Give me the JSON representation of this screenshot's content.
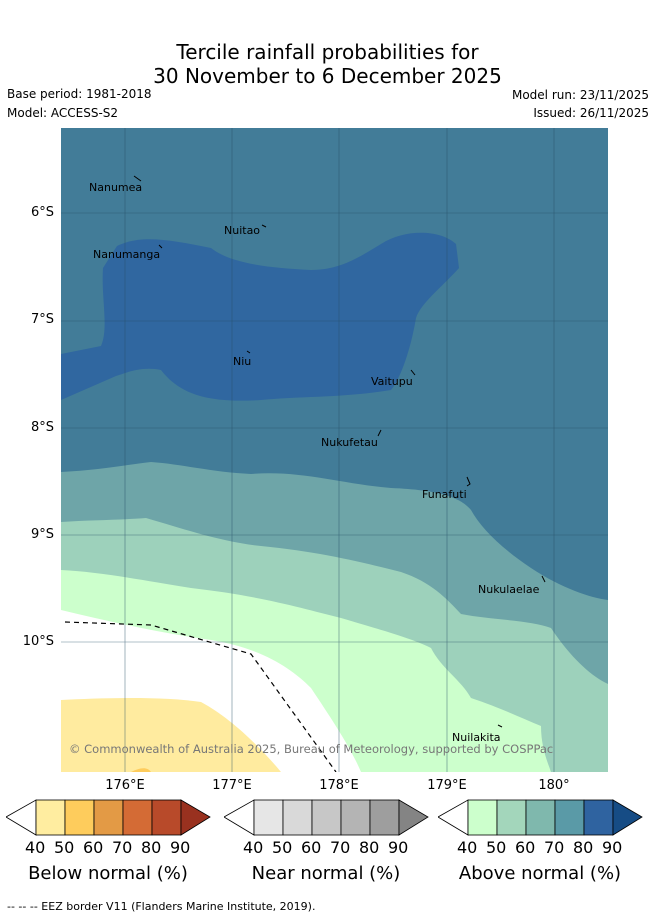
{
  "title": {
    "line1": "Tercile rainfall probabilities for",
    "line2": "30 November to 6 December 2025"
  },
  "meta": {
    "base_period": "Base period: 1981-2018",
    "model": "Model: ACCESS-S2",
    "model_run": "Model run: 23/11/2025",
    "issued": "Issued: 26/11/2025"
  },
  "map": {
    "lat_labels": [
      "6°S",
      "7°S",
      "8°S",
      "9°S",
      "10°S"
    ],
    "lon_labels": [
      "176°E",
      "177°E",
      "178°E",
      "179°E",
      "180°"
    ],
    "places": [
      "Nanumea",
      "Nuitao",
      "Nanumanga",
      "Niu",
      "Vaitupu",
      "Nukufetau",
      "Funafuti",
      "Nukulaelae",
      "Nuilakita"
    ],
    "copyright": "© Commonwealth of Australia 2025, Bureau of Meteorology, supported by COSPPac",
    "colors": {
      "above_60_70": "#5a9aa7",
      "above_70_80": "#427c98",
      "above_80_90": "#3067a0",
      "above_50_60": "#7fb8ad",
      "above_40_50": "#a3d6bb",
      "above_lt40": "#ccffcc",
      "below_40_50": "#ffeb9f"
    }
  },
  "colorbars": [
    {
      "title": "Below normal (%)",
      "ticks": [
        "40",
        "50",
        "60",
        "70",
        "80",
        "90"
      ],
      "colors": [
        "#ffeda0",
        "#fecc5c",
        "#e39a45",
        "#d46b35",
        "#b84a2a",
        "#99311f"
      ]
    },
    {
      "title": "Near normal (%)",
      "ticks": [
        "40",
        "50",
        "60",
        "70",
        "80",
        "90"
      ],
      "colors": [
        "#e6e6e6",
        "#d9d9d9",
        "#c7c7c7",
        "#b4b4b4",
        "#9e9e9e",
        "#848484"
      ]
    },
    {
      "title": "Above normal (%)",
      "ticks": [
        "40",
        "50",
        "60",
        "70",
        "80",
        "90"
      ],
      "colors": [
        "#ccffcc",
        "#a3d6bb",
        "#7fb8ad",
        "#5a9aa7",
        "#2f63a0",
        "#164c85"
      ]
    }
  ],
  "footer": "--  --  -- EEZ border V11 (Flanders Marine Institute, 2019)."
}
